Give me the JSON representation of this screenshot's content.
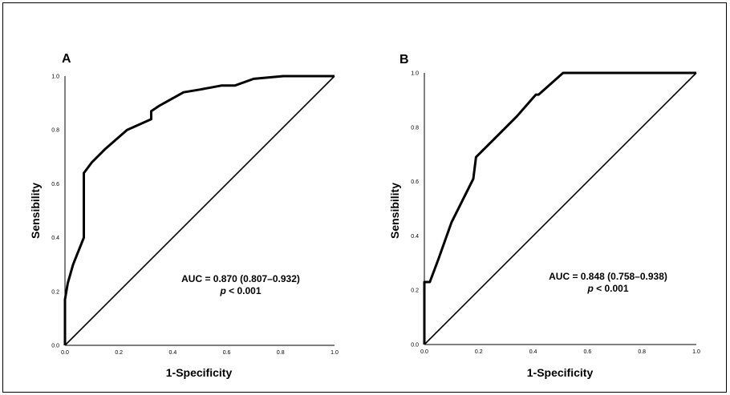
{
  "chart_data": [
    {
      "type": "line",
      "panel_label": "A",
      "xlabel": "1-Specificity",
      "ylabel": "Sensibility",
      "xlim": [
        0,
        1
      ],
      "ylim": [
        0,
        1
      ],
      "x_ticks": [
        "0.0",
        "0.2",
        "0.4",
        "0.6",
        "0.8",
        "1.0"
      ],
      "y_ticks": [
        "0.0",
        "0.2",
        "0.4",
        "0.6",
        "0.8",
        "1.0"
      ],
      "grid": false,
      "series": [
        {
          "role": "roc",
          "x": [
            0,
            0,
            0.01,
            0.03,
            0.07,
            0.07,
            0.1,
            0.15,
            0.23,
            0.32,
            0.32,
            0.35,
            0.44,
            0.5,
            0.58,
            0.63,
            0.7,
            0.81,
            0.9,
            1.0
          ],
          "y": [
            0,
            0.17,
            0.23,
            0.3,
            0.4,
            0.64,
            0.68,
            0.73,
            0.8,
            0.84,
            0.87,
            0.89,
            0.94,
            0.95,
            0.965,
            0.965,
            0.99,
            1.0,
            1.0,
            1.0
          ]
        },
        {
          "role": "reference",
          "x": [
            0,
            1
          ],
          "y": [
            0,
            1
          ]
        }
      ],
      "annotation": {
        "line1": "AUC = 0.870 (0.807–0.932)",
        "p_italic": "p",
        "p_rest": " < 0.001"
      }
    },
    {
      "type": "line",
      "panel_label": "B",
      "xlabel": "1-Specificity",
      "ylabel": "Sensibility",
      "xlim": [
        0,
        1
      ],
      "ylim": [
        0,
        1
      ],
      "x_ticks": [
        "0.0",
        "0.2",
        "0.4",
        "0.6",
        "0.8",
        "1.0"
      ],
      "y_ticks": [
        "0.0",
        "0.2",
        "0.4",
        "0.6",
        "0.8",
        "1.0"
      ],
      "grid": false,
      "series": [
        {
          "role": "roc",
          "x": [
            0,
            0,
            0.02,
            0.05,
            0.1,
            0.18,
            0.19,
            0.26,
            0.34,
            0.41,
            0.42,
            0.51,
            0.75,
            1.0
          ],
          "y": [
            0,
            0.23,
            0.23,
            0.31,
            0.45,
            0.61,
            0.69,
            0.76,
            0.84,
            0.92,
            0.92,
            1.0,
            1.0,
            1.0
          ]
        },
        {
          "role": "reference",
          "x": [
            0,
            1
          ],
          "y": [
            0,
            1
          ]
        }
      ],
      "annotation": {
        "line1": "AUC = 0.848 (0.758–0.938)",
        "p_italic": "p",
        "p_rest": " < 0.001"
      }
    }
  ]
}
